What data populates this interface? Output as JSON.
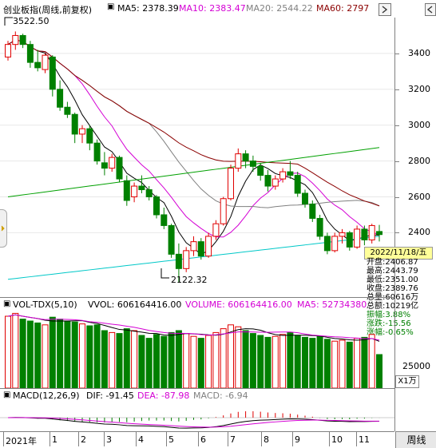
{
  "main_header": {
    "title": "创业板指(周线,前复权)",
    "ma5": "MA5: 2378.39",
    "ma10": "MA10: 2383.47",
    "ma20": "MA20: 2544.22",
    "ma60": "MA60: 2797",
    "colors": {
      "ma5": "#000000",
      "ma10": "#d400d4",
      "ma20": "#808080",
      "ma60": "#8b0000"
    }
  },
  "price_axis": [
    "3400",
    "3200",
    "3000",
    "2800",
    "2600",
    "2400"
  ],
  "annotations": {
    "high": "3522.50",
    "low": "2122.32"
  },
  "date_label": "2022/11/18/五",
  "info": {
    "open": "开盘:2406.87",
    "high": "最高:2443.79",
    "low": "最低:2351.00",
    "close": "收盘:2389.76",
    "volume": "总量:60616万",
    "amount": "总额:10219亿",
    "amplitude": "振幅:3.88%",
    "change": "涨跌:-15.56",
    "change_pct": "涨幅:-0.65%"
  },
  "volume_header": {
    "title": "VOL-TDX(5,10)",
    "vvol": "VVOL: 606164416.00",
    "volume": "VOLUME: 606164416.00",
    "ma5": "MA5: 52734380"
  },
  "volume_axis": [
    "25000"
  ],
  "volume_unit": "X1万",
  "macd_header": {
    "title": "MACD(12,26,9)",
    "dif": "DIF: -91.45",
    "dea": "DEA: -87.98",
    "macd": "MACD: -6.94"
  },
  "time_axis": [
    "2021年",
    "1",
    "2",
    "3",
    "4",
    "5",
    "6",
    "7",
    "8",
    "9",
    "10",
    "11"
  ],
  "timeframe_button": "周线",
  "chart_data": {
    "type": "candlestick",
    "title": "创业板指(周线,前复权)",
    "ylim": [
      2050,
      3600
    ],
    "candles": [
      [
        3380,
        3470,
        3360,
        3450
      ],
      [
        3450,
        3522.5,
        3420,
        3500
      ],
      [
        3500,
        3510,
        3430,
        3450
      ],
      [
        3450,
        3470,
        3320,
        3350
      ],
      [
        3350,
        3420,
        3300,
        3320
      ],
      [
        3310,
        3400,
        3290,
        3390
      ],
      [
        3380,
        3390,
        3160,
        3200
      ],
      [
        3200,
        3250,
        3080,
        3100
      ],
      [
        3100,
        3130,
        3040,
        3060
      ],
      [
        3060,
        3070,
        2900,
        2950
      ],
      [
        2950,
        3000,
        2900,
        2980
      ],
      [
        2980,
        3000,
        2860,
        2900
      ],
      [
        2900,
        2920,
        2780,
        2800
      ],
      [
        2790,
        2850,
        2720,
        2760
      ],
      [
        2760,
        2840,
        2740,
        2820
      ],
      [
        2820,
        2830,
        2680,
        2700
      ],
      [
        2690,
        2720,
        2550,
        2580
      ],
      [
        2600,
        2680,
        2570,
        2660
      ],
      [
        2660,
        2720,
        2620,
        2640
      ],
      [
        2640,
        2660,
        2580,
        2600
      ],
      [
        2600,
        2610,
        2480,
        2500
      ],
      [
        2500,
        2540,
        2420,
        2440
      ],
      [
        2440,
        2450,
        2260,
        2280
      ],
      [
        2280,
        2340,
        2122.32,
        2200
      ],
      [
        2200,
        2320,
        2180,
        2300
      ],
      [
        2300,
        2380,
        2270,
        2350
      ],
      [
        2350,
        2370,
        2250,
        2270
      ],
      [
        2270,
        2400,
        2260,
        2380
      ],
      [
        2380,
        2470,
        2360,
        2450
      ],
      [
        2450,
        2600,
        2440,
        2590
      ],
      [
        2590,
        2780,
        2580,
        2760
      ],
      [
        2760,
        2870,
        2740,
        2840
      ],
      [
        2840,
        2860,
        2760,
        2800
      ],
      [
        2800,
        2830,
        2740,
        2770
      ],
      [
        2770,
        2790,
        2690,
        2720
      ],
      [
        2720,
        2750,
        2630,
        2660
      ],
      [
        2660,
        2720,
        2640,
        2700
      ],
      [
        2700,
        2760,
        2680,
        2740
      ],
      [
        2740,
        2800,
        2700,
        2720
      ],
      [
        2720,
        2740,
        2600,
        2620
      ],
      [
        2620,
        2640,
        2540,
        2560
      ],
      [
        2560,
        2580,
        2460,
        2480
      ],
      [
        2480,
        2500,
        2360,
        2380
      ],
      [
        2380,
        2400,
        2280,
        2300
      ],
      [
        2300,
        2400,
        2290,
        2380
      ],
      [
        2380,
        2420,
        2340,
        2400
      ],
      [
        2400,
        2410,
        2300,
        2320
      ],
      [
        2320,
        2440,
        2310,
        2420
      ],
      [
        2420,
        2440,
        2330,
        2360
      ],
      [
        2360,
        2450,
        2340,
        2440
      ],
      [
        2406.87,
        2443.79,
        2351.0,
        2389.76
      ]
    ],
    "volume": [
      75,
      78,
      72,
      70,
      68,
      66,
      74,
      72,
      70,
      69,
      67,
      65,
      66,
      60,
      58,
      57,
      62,
      60,
      55,
      52,
      56,
      54,
      58,
      60,
      57,
      54,
      52,
      55,
      58,
      62,
      66,
      64,
      60,
      57,
      55,
      53,
      54,
      56,
      58,
      55,
      53,
      52,
      54,
      51,
      49,
      50,
      48,
      52,
      53,
      56,
      35
    ]
  }
}
